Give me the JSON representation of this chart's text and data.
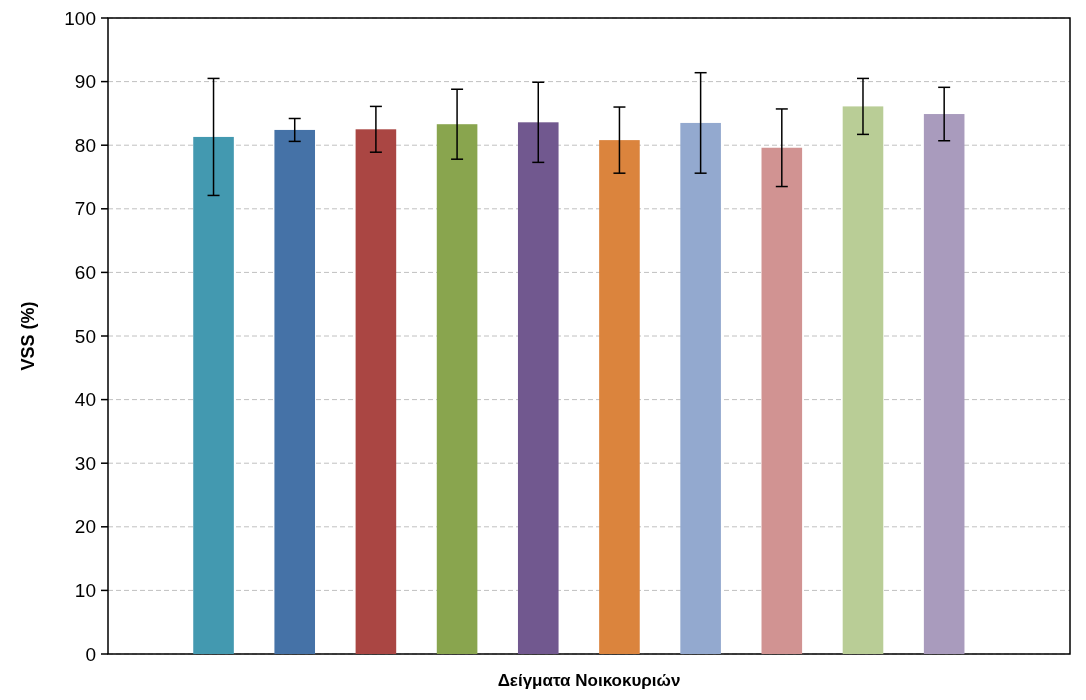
{
  "chart_data": {
    "type": "bar",
    "xlabel": "Δείγματα Νοικοκυριών",
    "ylabel": "VSS (%)",
    "categories": [
      null,
      null,
      null,
      null,
      null,
      null,
      null,
      null,
      null,
      null
    ],
    "values": [
      81.3,
      82.4,
      82.5,
      83.3,
      83.6,
      80.8,
      83.5,
      79.6,
      86.1,
      84.9
    ],
    "errors": [
      9.2,
      1.8,
      3.6,
      5.5,
      6.3,
      5.2,
      7.9,
      6.1,
      4.4,
      4.2
    ],
    "colors": [
      "#4399b0",
      "#4572a7",
      "#aa4643",
      "#89a54e",
      "#71588f",
      "#db843d",
      "#93a9cf",
      "#d19392",
      "#b9cd96",
      "#a99bbd"
    ],
    "ylim": [
      0,
      100
    ],
    "yticks": [
      0,
      10,
      20,
      30,
      40,
      50,
      60,
      70,
      80,
      90,
      100
    ],
    "grid": "y"
  }
}
